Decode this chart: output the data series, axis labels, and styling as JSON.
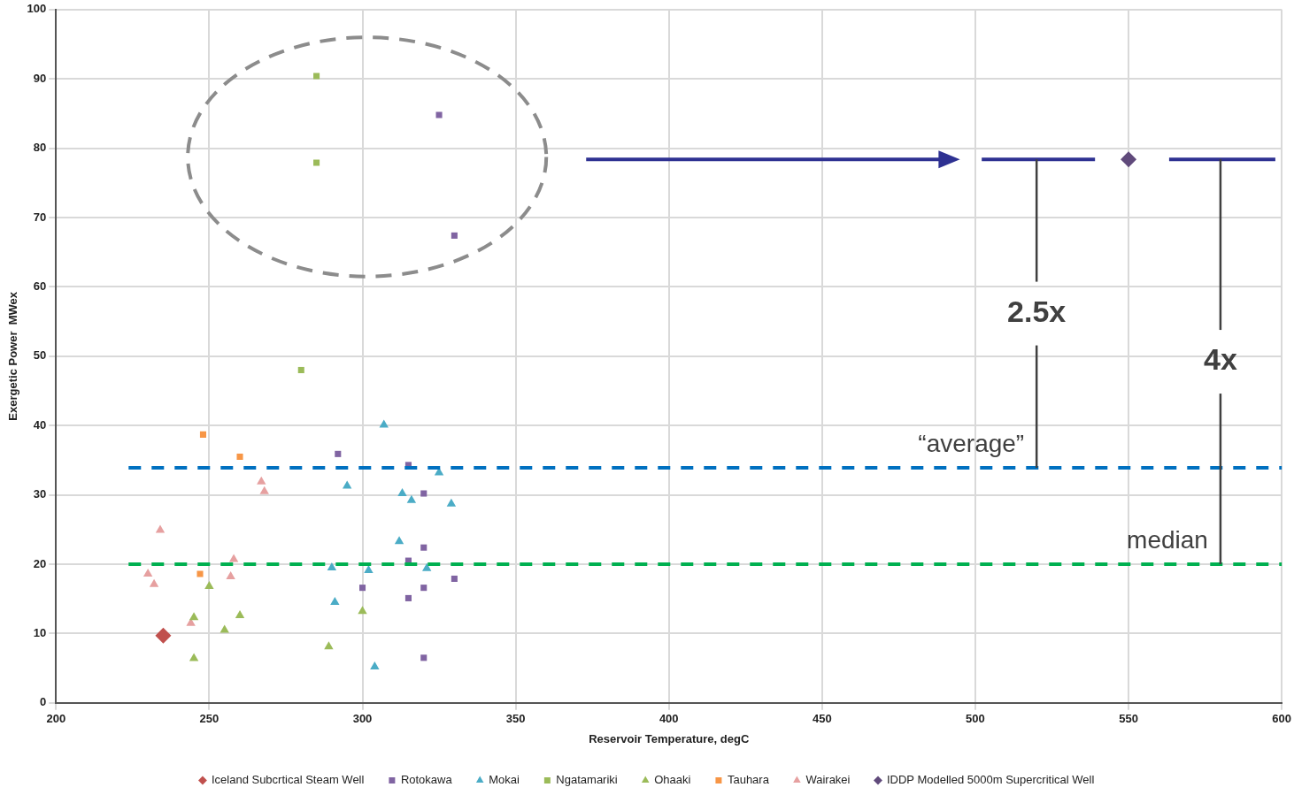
{
  "chart_data": {
    "type": "scatter",
    "xlabel": "Reservoir Temperature, degC",
    "ylabel": "Exergetic Power  MWex",
    "xlim": [
      200,
      600
    ],
    "xticks": [
      200,
      250,
      300,
      350,
      400,
      450,
      500,
      550,
      600
    ],
    "ylim": [
      0,
      100
    ],
    "yticks": [
      0,
      10,
      20,
      30,
      40,
      50,
      60,
      70,
      80,
      90,
      100
    ],
    "grid": true,
    "legend": "bottom",
    "series": [
      {
        "name": "Iceland Subcrtical Steam Well",
        "color": "#c0504d",
        "marker": "diamond",
        "x": [
          235
        ],
        "values": [
          9.7
        ]
      },
      {
        "name": "Rotokawa",
        "color": "#8064a2",
        "marker": "square",
        "x": [
          325,
          330,
          292,
          315,
          320,
          320,
          315,
          300,
          320,
          330,
          315,
          320
        ],
        "values": [
          84.8,
          67.4,
          35.9,
          34.3,
          30.2,
          22.4,
          20.5,
          16.6,
          16.6,
          17.9,
          15.1,
          6.5
        ]
      },
      {
        "name": "Mokai",
        "color": "#4bacc6",
        "marker": "triangle",
        "x": [
          307,
          295,
          313,
          316,
          329,
          325,
          312,
          290,
          302,
          321,
          291,
          304
        ],
        "values": [
          40.1,
          31.3,
          30.2,
          29.2,
          28.7,
          33.2,
          23.3,
          19.5,
          19.1,
          19.4,
          14.5,
          5.2
        ]
      },
      {
        "name": "Ngatamariki",
        "color": "#9bbb59",
        "marker": "square",
        "x": [
          285,
          285,
          280
        ],
        "values": [
          90.4,
          77.9,
          48.0
        ]
      },
      {
        "name": "Ohaaki",
        "color": "#9bbb59",
        "marker": "triangle",
        "x": [
          250,
          245,
          260,
          255,
          245,
          289,
          300
        ],
        "values": [
          16.8,
          12.3,
          12.6,
          10.5,
          6.4,
          8.1,
          13.2
        ]
      },
      {
        "name": "Tauhara",
        "color": "#f79646",
        "marker": "square",
        "x": [
          248,
          260,
          247
        ],
        "values": [
          38.7,
          35.5,
          18.6
        ]
      },
      {
        "name": "Wairakei",
        "color": "#e6a0a0",
        "marker": "triangle",
        "x": [
          234,
          230,
          232,
          267,
          268,
          258,
          257,
          244
        ],
        "values": [
          24.9,
          18.6,
          17.1,
          31.9,
          30.5,
          20.7,
          18.2,
          11.5
        ]
      },
      {
        "name": "IDDP Modelled 5000m Supercritical Well",
        "color": "#604a7b",
        "marker": "diamond",
        "x": [
          550
        ],
        "values": [
          78.4
        ]
      }
    ],
    "ref_lines": [
      {
        "axis": "y",
        "value": 33.9,
        "label": "“average”",
        "color": "#0070c0",
        "line_style": "dashed"
      },
      {
        "axis": "y",
        "value": 20,
        "label": "median",
        "color": "#00b050",
        "line_style": "dashed"
      }
    ],
    "annotations": [
      {
        "text": "2.5x",
        "x": 520,
        "y": 33.9
      },
      {
        "text": "4x",
        "x": 580,
        "y": 20
      }
    ]
  }
}
